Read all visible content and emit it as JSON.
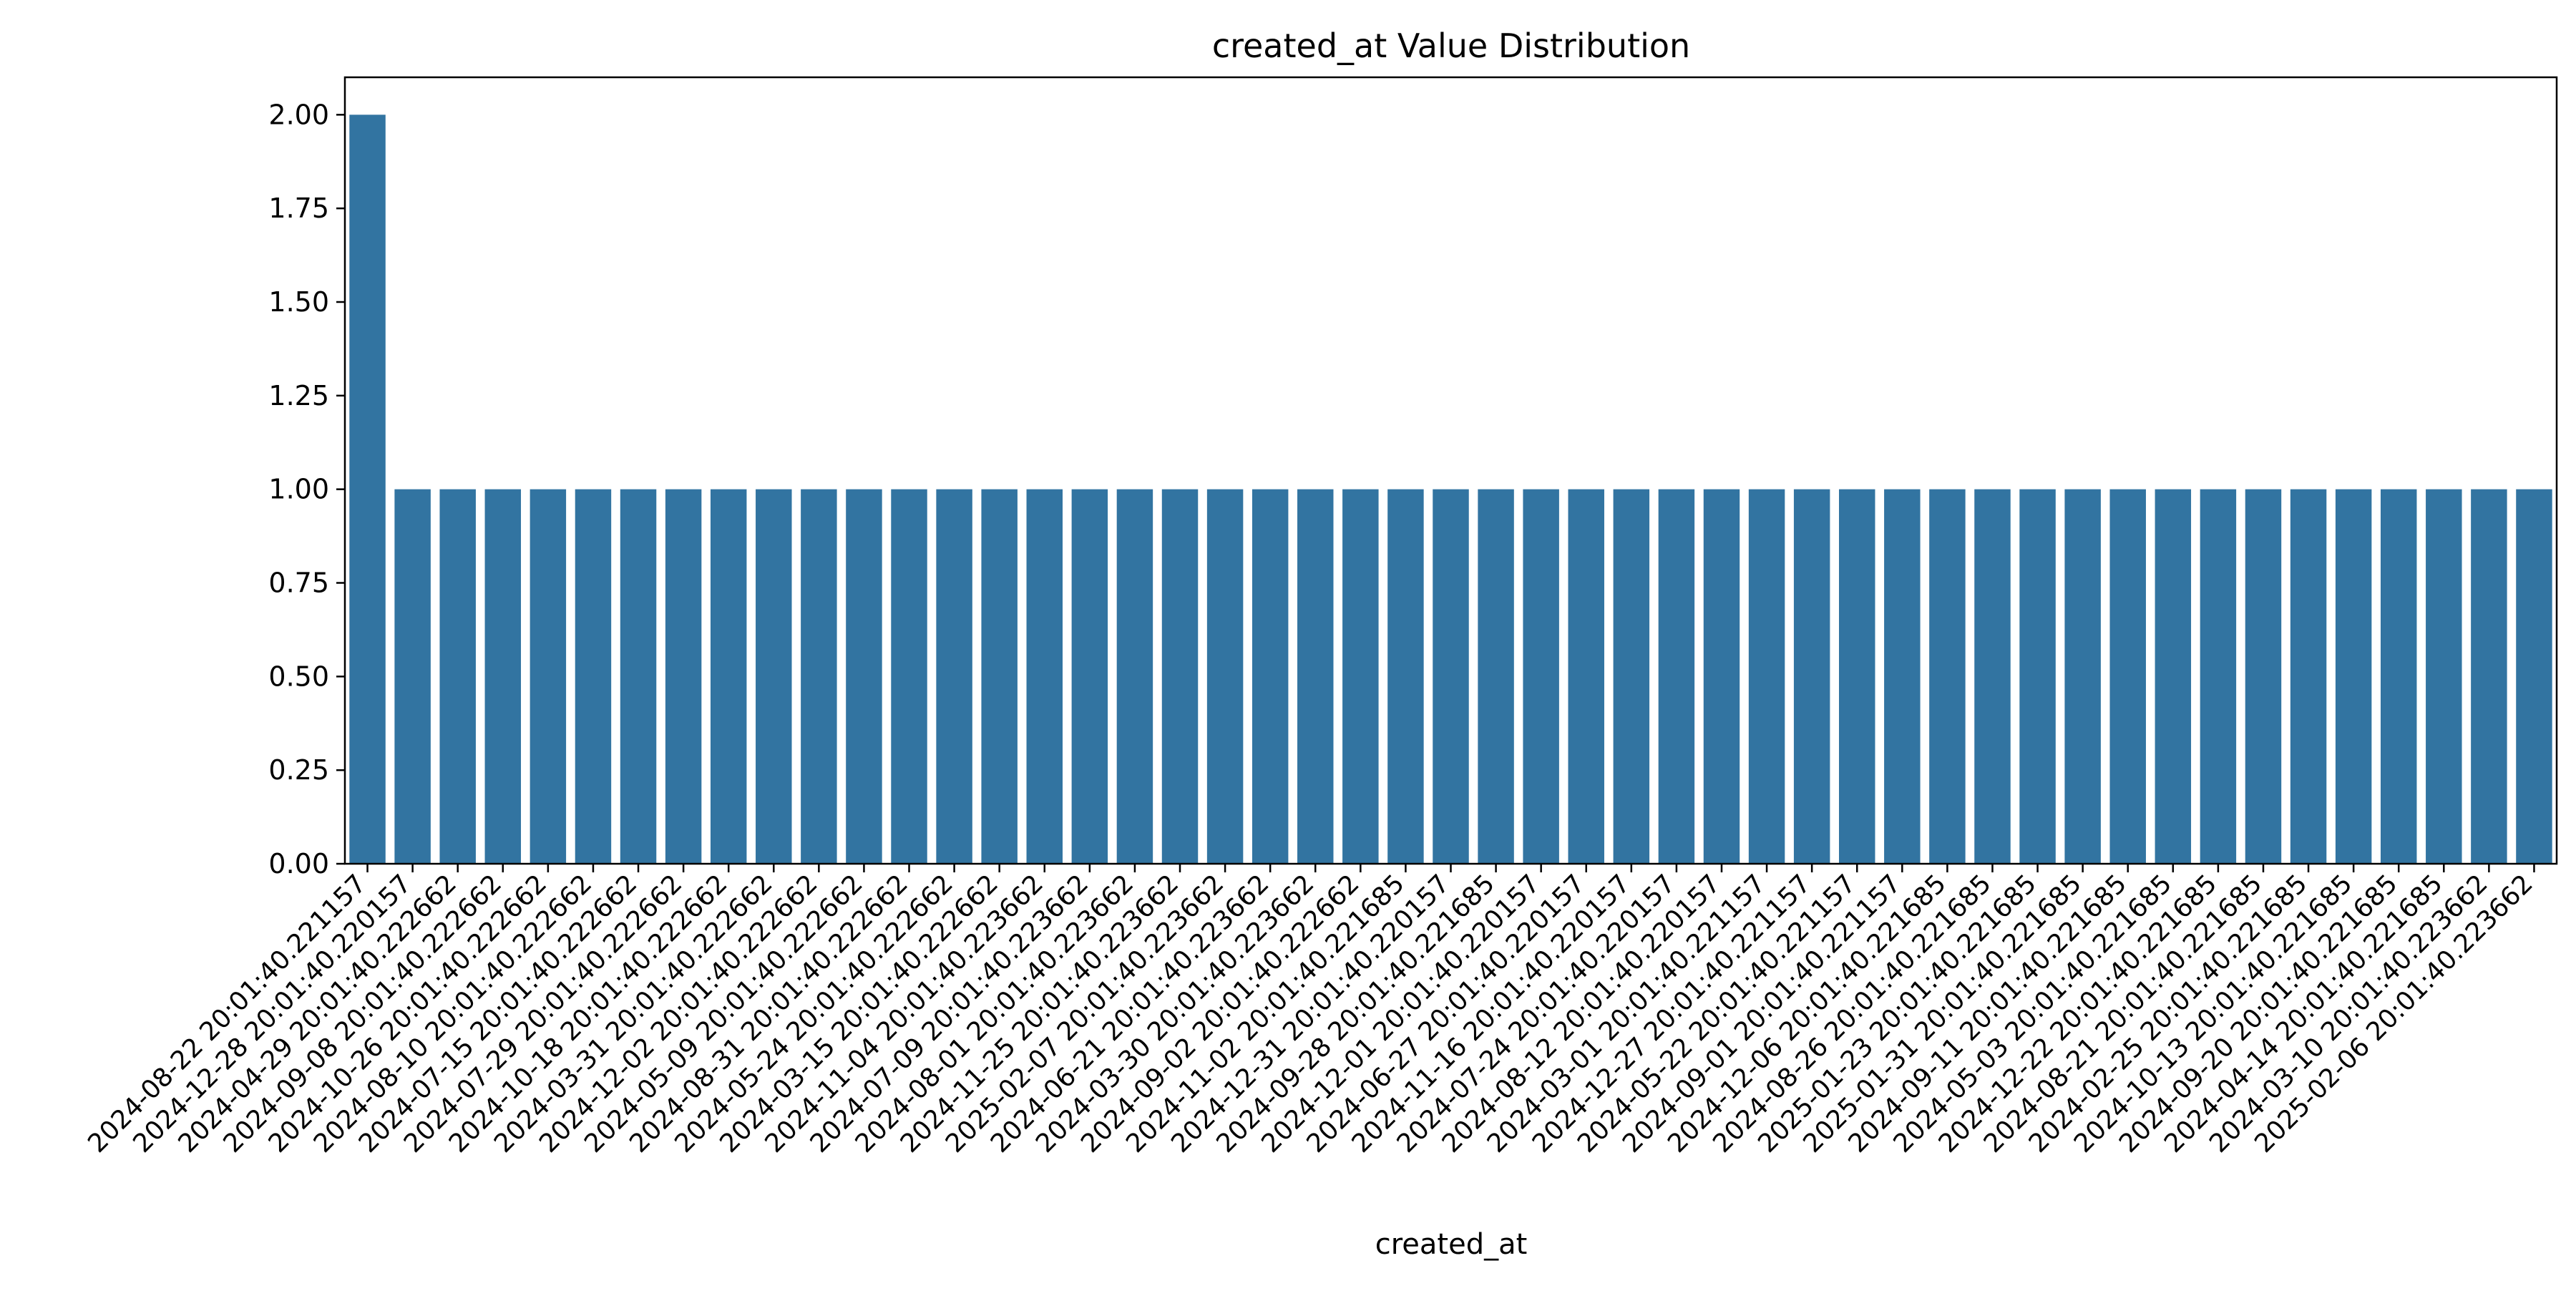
{
  "chart_data": {
    "type": "bar",
    "title": "created_at Value Distribution",
    "xlabel": "created_at",
    "ylabel": "",
    "ylim": [
      0,
      2.1
    ],
    "yticks": [
      "0.00",
      "0.25",
      "0.50",
      "0.75",
      "1.00",
      "1.25",
      "1.50",
      "1.75",
      "2.00"
    ],
    "bar_color": "#3274a1",
    "grid": false,
    "legend": "none",
    "categories": [
      "2024-08-22 20:01:40.221157",
      "2024-12-28 20:01:40.220157",
      "2024-04-29 20:01:40.222662",
      "2024-09-08 20:01:40.222662",
      "2024-10-26 20:01:40.222662",
      "2024-08-10 20:01:40.222662",
      "2024-07-15 20:01:40.222662",
      "2024-07-29 20:01:40.222662",
      "2024-10-18 20:01:40.222662",
      "2024-03-31 20:01:40.222662",
      "2024-12-02 20:01:40.222662",
      "2024-05-09 20:01:40.222662",
      "2024-08-31 20:01:40.222662",
      "2024-05-24 20:01:40.222662",
      "2024-03-15 20:01:40.222662",
      "2024-11-04 20:01:40.223662",
      "2024-07-09 20:01:40.223662",
      "2024-08-01 20:01:40.223662",
      "2024-11-25 20:01:40.223662",
      "2025-02-07 20:01:40.223662",
      "2024-06-21 20:01:40.223662",
      "2024-03-30 20:01:40.223662",
      "2024-09-02 20:01:40.222662",
      "2024-11-02 20:01:40.221685",
      "2024-12-31 20:01:40.220157",
      "2024-09-28 20:01:40.221685",
      "2024-12-01 20:01:40.220157",
      "2024-06-27 20:01:40.220157",
      "2024-11-16 20:01:40.220157",
      "2024-07-24 20:01:40.220157",
      "2024-08-12 20:01:40.220157",
      "2024-03-01 20:01:40.221157",
      "2024-12-27 20:01:40.221157",
      "2024-05-22 20:01:40.221157",
      "2024-09-01 20:01:40.221157",
      "2024-12-06 20:01:40.221685",
      "2024-08-26 20:01:40.221685",
      "2025-01-23 20:01:40.221685",
      "2025-01-31 20:01:40.221685",
      "2024-09-11 20:01:40.221685",
      "2024-05-03 20:01:40.221685",
      "2024-12-22 20:01:40.221685",
      "2024-08-21 20:01:40.221685",
      "2024-02-25 20:01:40.221685",
      "2024-10-13 20:01:40.221685",
      "2024-09-20 20:01:40.221685",
      "2024-04-14 20:01:40.221685",
      "2024-03-10 20:01:40.223662",
      "2025-02-06 20:01:40.223662"
    ],
    "values": [
      2,
      1,
      1,
      1,
      1,
      1,
      1,
      1,
      1,
      1,
      1,
      1,
      1,
      1,
      1,
      1,
      1,
      1,
      1,
      1,
      1,
      1,
      1,
      1,
      1,
      1,
      1,
      1,
      1,
      1,
      1,
      1,
      1,
      1,
      1,
      1,
      1,
      1,
      1,
      1,
      1,
      1,
      1,
      1,
      1,
      1,
      1,
      1,
      1
    ]
  }
}
